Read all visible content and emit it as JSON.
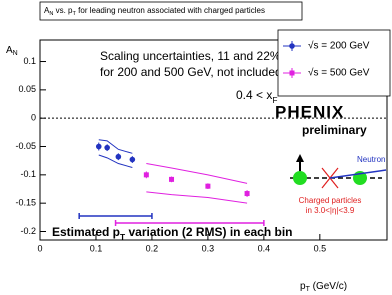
{
  "chart_data": {
    "type": "scatter",
    "title": [
      {
        "text": "A"
      },
      {
        "text": "N",
        "sub": true
      },
      {
        "text": " vs. p"
      },
      {
        "text": "T",
        "sub": true
      },
      {
        "text": " for leading neutron associated with charged particles"
      }
    ],
    "x_label": [
      {
        "text": "p"
      },
      {
        "text": "T",
        "sub": true
      },
      {
        "text": " (GeV/c)"
      }
    ],
    "y_label": [
      {
        "text": "A"
      },
      {
        "text": "N",
        "sub": true
      }
    ],
    "xlim": [
      0,
      0.62
    ],
    "ylim": [
      -0.215,
      0.138
    ],
    "xticks": [
      0,
      0.1,
      0.2,
      0.3,
      0.4,
      0.5
    ],
    "yticks": [
      -0.2,
      -0.15,
      -0.1,
      -0.05,
      0,
      0.05,
      0.1
    ],
    "series": [
      {
        "name": "√s = 200 GeV",
        "color": "#2233c0",
        "marker": "circle",
        "x": [
          0.105,
          0.12,
          0.14,
          0.165
        ],
        "values": [
          -0.05,
          -0.052,
          -0.068,
          -0.073
        ],
        "errors": [
          0.007,
          0.006,
          0.006,
          0.006
        ],
        "band_high": [
          -0.038,
          -0.04,
          -0.055,
          -0.062
        ],
        "band_low": [
          -0.065,
          -0.07,
          -0.08,
          -0.087
        ],
        "pt_range": [
          0.07,
          0.2
        ]
      },
      {
        "name": "√s = 500 GeV",
        "color": "#e020e0",
        "marker": "square",
        "x": [
          0.19,
          0.235,
          0.3,
          0.37
        ],
        "values": [
          -0.1,
          -0.108,
          -0.12,
          -0.133
        ],
        "errors": [
          0.006,
          0.005,
          0.005,
          0.006
        ],
        "band_high": [
          -0.08,
          -0.088,
          -0.1,
          -0.115
        ],
        "band_low": [
          -0.13,
          -0.135,
          -0.14,
          -0.15
        ],
        "pt_range": [
          0.135,
          0.4
        ]
      }
    ],
    "annotations": {
      "scaling_1": "Scaling uncertainties, 11 and 22%",
      "scaling_2": "for 200 and 500 GeV, not included",
      "xf": [
        {
          "text": "0.4 < x"
        },
        {
          "text": "F",
          "sub": true
        }
      ],
      "logo": "PHENIX",
      "status": "preliminary",
      "pt_variation": [
        {
          "text": "Estimated p"
        },
        {
          "text": "T",
          "sub": true
        },
        {
          "text": " variation (2 RMS) in each bin"
        }
      ],
      "neutron": "Neutron",
      "charged_1": "Charged particles",
      "charged_2": "in 3.0<|η|<3.9"
    }
  }
}
